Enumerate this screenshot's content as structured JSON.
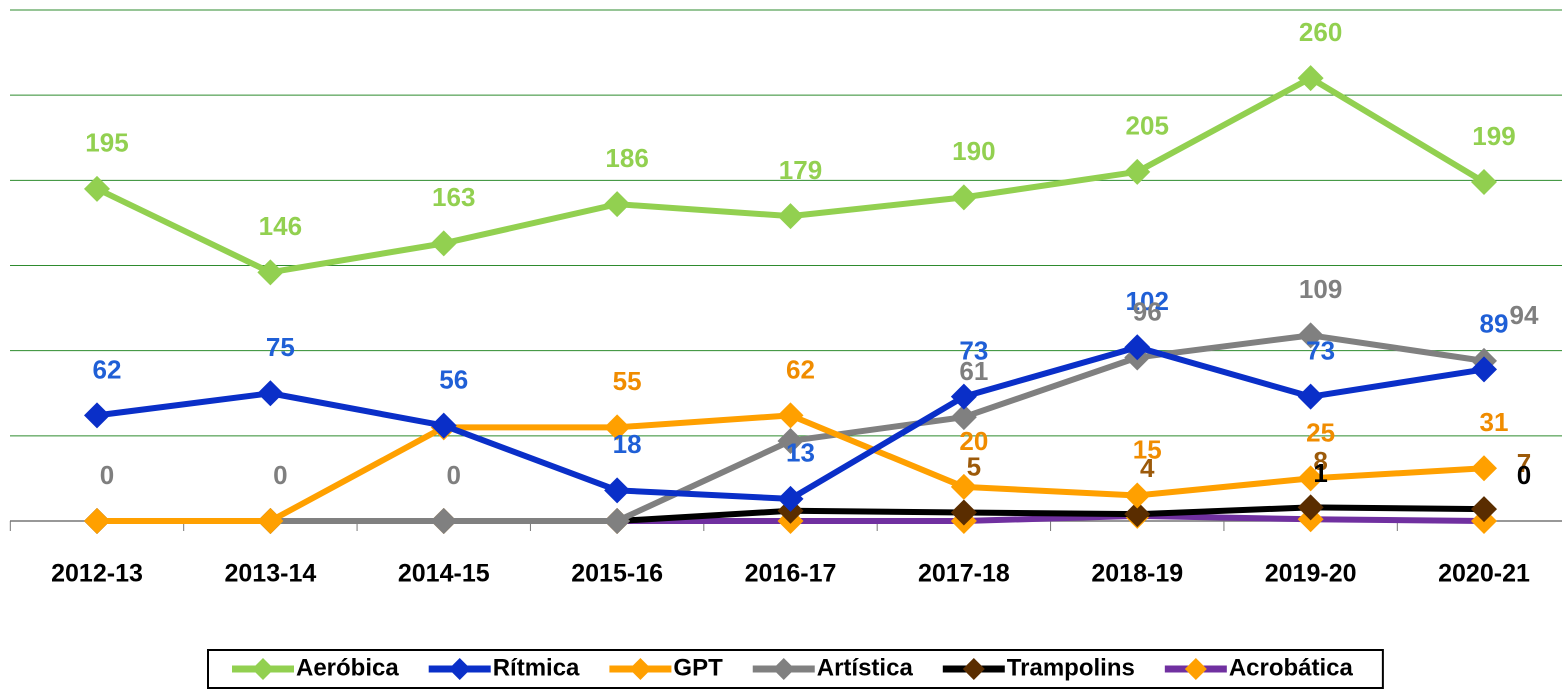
{
  "chart_data": {
    "type": "line",
    "categories": [
      "2012-13",
      "2013-14",
      "2014-15",
      "2015-16",
      "2016-17",
      "2017-18",
      "2018-19",
      "2019-20",
      "2020-21"
    ],
    "series": [
      {
        "name": "Aeróbica",
        "color": "#92d050",
        "marker_color": "#92d050",
        "label_color": "#92d050",
        "values": [
          195,
          146,
          163,
          186,
          179,
          190,
          205,
          260,
          199
        ],
        "value_labels": [
          "195",
          "146",
          "163",
          "186",
          "179",
          "190",
          "205",
          "260",
          "199"
        ]
      },
      {
        "name": "Rítmica",
        "color": "#0a2fc8",
        "marker_color": "#0a2fc8",
        "label_color": "#1f5fd6",
        "values": [
          62,
          75,
          56,
          18,
          13,
          73,
          102,
          73,
          89
        ],
        "value_labels": [
          "62",
          "75",
          "56",
          "18",
          "13",
          "73",
          "102",
          "73",
          "89"
        ]
      },
      {
        "name": "GPT",
        "color": "#ffa000",
        "marker_color": "#ffa000",
        "label_color": "#f08c00",
        "values": [
          0,
          0,
          55,
          55,
          62,
          20,
          15,
          25,
          31
        ],
        "value_labels": [
          null,
          null,
          null,
          "55",
          "62",
          "20",
          "15",
          "25",
          "31"
        ]
      },
      {
        "name": "Artística",
        "color": "#808080",
        "marker_color": "#808080",
        "label_color": "#7f7f7f",
        "values": [
          0,
          0,
          0,
          0,
          47,
          61,
          96,
          109,
          94
        ],
        "value_labels": [
          "0",
          "0",
          "0",
          null,
          null,
          "61",
          "96",
          "109",
          "94"
        ]
      },
      {
        "name": "Trampolins",
        "color": "#000000",
        "marker_color": "#5a2d00",
        "label_color": "#9c5a0a",
        "values": [
          0,
          0,
          0,
          0,
          6,
          5,
          4,
          8,
          7
        ],
        "value_labels": [
          null,
          null,
          null,
          null,
          null,
          "5",
          "4",
          "8",
          "7"
        ]
      },
      {
        "name": "Acrobática",
        "color": "#7030a0",
        "marker_color": "#ffa000",
        "label_color": "#000000",
        "values": [
          0,
          0,
          0,
          0,
          0,
          0,
          3,
          1,
          0
        ],
        "value_labels": [
          null,
          null,
          null,
          null,
          null,
          null,
          null,
          "1",
          "0"
        ]
      }
    ],
    "ylim": [
      0,
      300
    ],
    "yticks": [
      0,
      50,
      100,
      150,
      200,
      250,
      300
    ],
    "grid": true,
    "show_ytick_labels": false,
    "legend": "bottom"
  }
}
